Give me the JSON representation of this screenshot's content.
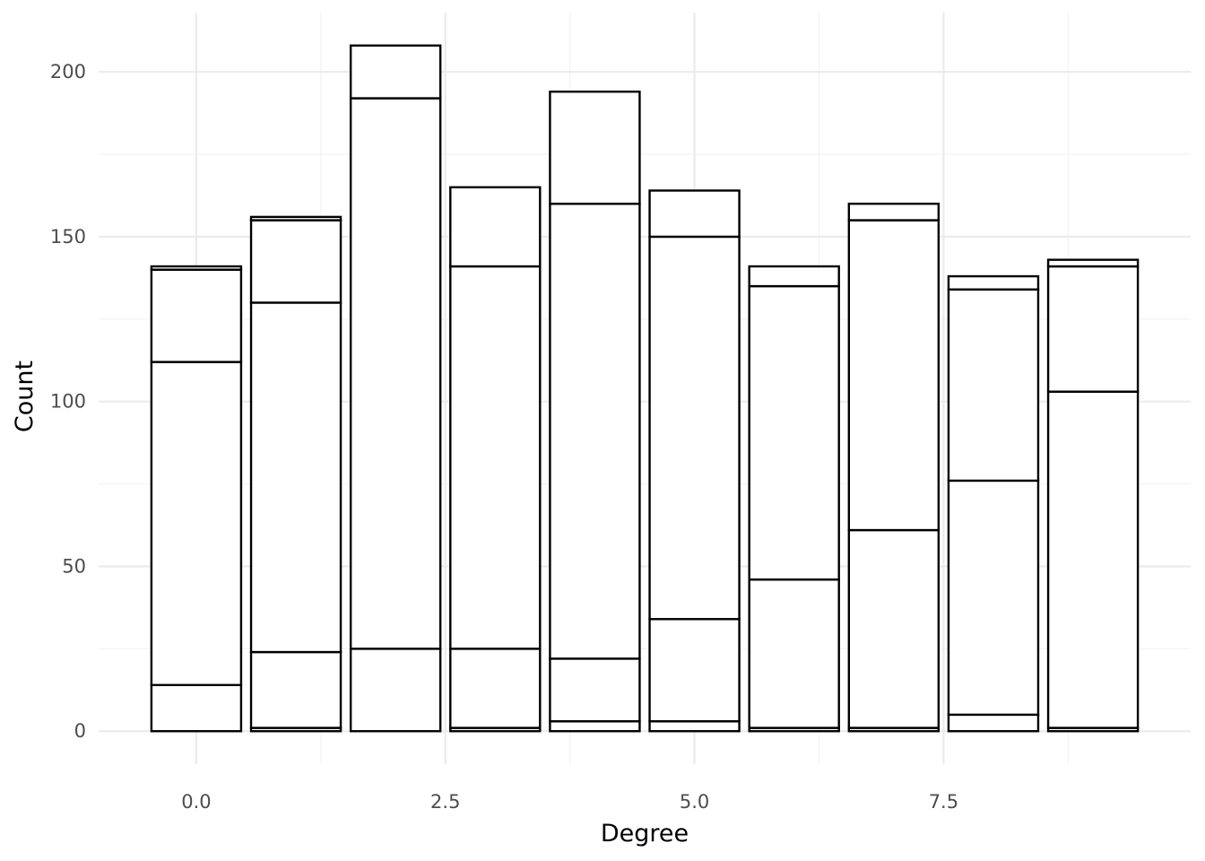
{
  "chart_data": {
    "type": "bar",
    "stacked": true,
    "title": "",
    "xlabel": "Degree",
    "ylabel": "Count",
    "xlim": [
      -0.98,
      9.98
    ],
    "ylim": [
      -10,
      218
    ],
    "x_ticks": [
      0,
      2.5,
      5,
      7.5
    ],
    "x_tick_labels": [
      "0.0",
      "2.5",
      "5.0",
      "7.5"
    ],
    "y_ticks": [
      0,
      50,
      100,
      150,
      200
    ],
    "y_tick_labels": [
      "0",
      "50",
      "100",
      "150",
      "200"
    ],
    "bar_width": 0.9,
    "grid": true,
    "fill_color": "#ffffff",
    "edge_color": "#000000",
    "x": [
      0,
      1,
      2,
      3,
      4,
      5,
      6,
      7,
      8,
      9
    ],
    "stack_boundaries": [
      [
        14,
        112,
        140,
        141
      ],
      [
        1,
        24,
        130,
        155,
        156
      ],
      [
        25,
        192,
        208
      ],
      [
        1,
        25,
        141,
        165
      ],
      [
        3,
        22,
        160,
        194
      ],
      [
        3,
        34,
        150,
        164
      ],
      [
        1,
        46,
        135,
        141
      ],
      [
        1,
        61,
        155,
        160
      ],
      [
        5,
        76,
        134,
        138
      ],
      [
        1,
        103,
        141,
        143
      ]
    ]
  }
}
